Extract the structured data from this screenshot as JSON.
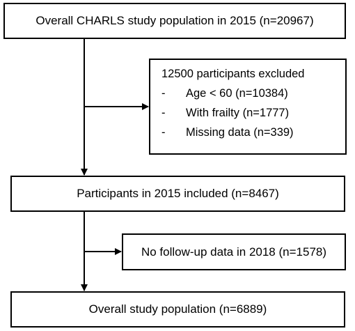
{
  "flowchart": {
    "top_box": "Overall CHARLS study population in 2015 (n=20967)",
    "excluded": {
      "title": "12500 participants excluded",
      "items": [
        {
          "bullet": "-",
          "text": "Age < 60 (n=10384)"
        },
        {
          "bullet": "-",
          "text": "With frailty (n=1777)"
        },
        {
          "bullet": "-",
          "text": "Missing data (n=339)"
        }
      ]
    },
    "included_box": "Participants in 2015 included (n=8467)",
    "no_followup_box": "No follow-up data in 2018 (n=1578)",
    "final_box": "Overall study population (n=6889)"
  }
}
